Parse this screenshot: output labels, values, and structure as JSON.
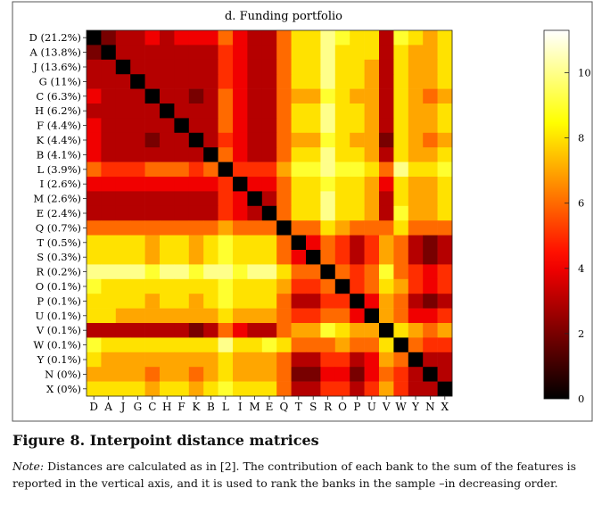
{
  "chart_data": {
    "type": "heatmap",
    "title": "d. Funding portfolio",
    "row_labels": [
      "D (21.2%)",
      "A (13.8%)",
      "J (13.6%)",
      "G (11%)",
      "C (6.3%)",
      "H (6.2%)",
      "F (4.4%)",
      "K (4.4%)",
      "B (4.1%)",
      "L (3.9%)",
      "I (2.6%)",
      "M (2.6%)",
      "E (2.4%)",
      "Q (0.7%)",
      "T (0.5%)",
      "S (0.3%)",
      "R (0.2%)",
      "O (0.1%)",
      "P (0.1%)",
      "U (0.1%)",
      "V (0.1%)",
      "W (0.1%)",
      "Y (0.1%)",
      "N (0%)",
      "X (0%)"
    ],
    "col_labels": [
      "D",
      "A",
      "J",
      "G",
      "C",
      "H",
      "F",
      "K",
      "B",
      "L",
      "I",
      "M",
      "E",
      "Q",
      "T",
      "S",
      "R",
      "O",
      "P",
      "U",
      "V",
      "W",
      "Y",
      "N",
      "X"
    ],
    "values": [
      [
        0,
        2,
        3,
        3,
        4,
        3,
        4,
        4,
        4,
        6,
        4,
        3,
        3,
        6,
        8,
        8,
        10,
        9,
        8,
        8,
        3,
        9,
        8,
        7,
        8
      ],
      [
        2,
        0,
        3,
        3,
        3,
        3,
        3,
        3,
        3,
        5,
        4,
        3,
        3,
        6,
        8,
        8,
        10,
        8,
        8,
        8,
        3,
        8,
        7,
        7,
        8
      ],
      [
        3,
        3,
        0,
        3,
        3,
        3,
        3,
        3,
        3,
        5,
        4,
        3,
        3,
        6,
        8,
        8,
        10,
        8,
        8,
        7,
        3,
        8,
        7,
        7,
        8
      ],
      [
        3,
        3,
        3,
        0,
        3,
        3,
        3,
        3,
        3,
        5,
        4,
        3,
        3,
        6,
        8,
        8,
        10,
        8,
        8,
        7,
        3,
        8,
        7,
        7,
        8
      ],
      [
        4,
        3,
        3,
        3,
        0,
        3,
        3,
        2,
        3,
        6,
        4,
        3,
        3,
        6,
        7,
        7,
        9,
        8,
        7,
        7,
        3,
        8,
        7,
        6,
        7
      ],
      [
        3,
        3,
        3,
        3,
        3,
        0,
        3,
        3,
        3,
        6,
        4,
        3,
        3,
        6,
        8,
        8,
        10,
        8,
        8,
        7,
        3,
        8,
        7,
        7,
        8
      ],
      [
        4,
        3,
        3,
        3,
        3,
        3,
        0,
        3,
        3,
        6,
        4,
        3,
        3,
        6,
        8,
        8,
        10,
        8,
        8,
        7,
        3,
        8,
        7,
        7,
        8
      ],
      [
        4,
        3,
        3,
        3,
        2,
        3,
        3,
        0,
        3,
        5,
        4,
        3,
        3,
        6,
        7,
        7,
        9,
        8,
        7,
        7,
        2,
        8,
        7,
        6,
        7
      ],
      [
        4,
        3,
        3,
        3,
        3,
        3,
        3,
        3,
        0,
        6,
        4,
        3,
        3,
        6,
        8,
        8,
        10,
        8,
        8,
        7,
        3,
        8,
        7,
        7,
        8
      ],
      [
        6,
        5,
        5,
        5,
        6,
        6,
        6,
        5,
        6,
        0,
        5,
        5,
        5,
        7,
        9,
        9,
        10,
        9,
        9,
        8,
        6,
        10,
        8,
        8,
        9
      ],
      [
        4,
        4,
        4,
        4,
        4,
        4,
        4,
        4,
        4,
        5,
        0,
        4,
        4,
        6,
        8,
        8,
        9,
        8,
        8,
        7,
        4,
        8,
        7,
        7,
        8
      ],
      [
        3,
        3,
        3,
        3,
        3,
        3,
        3,
        3,
        3,
        5,
        4,
        0,
        3,
        6,
        8,
        8,
        10,
        8,
        8,
        7,
        3,
        8,
        7,
        7,
        8
      ],
      [
        3,
        3,
        3,
        3,
        3,
        3,
        3,
        3,
        3,
        5,
        4,
        3,
        0,
        6,
        8,
        8,
        10,
        8,
        8,
        7,
        3,
        9,
        7,
        7,
        8
      ],
      [
        6,
        6,
        6,
        6,
        6,
        6,
        6,
        6,
        6,
        7,
        6,
        6,
        6,
        0,
        6,
        6,
        8,
        7,
        6,
        6,
        6,
        8,
        6,
        6,
        6
      ],
      [
        8,
        8,
        8,
        8,
        7,
        8,
        8,
        7,
        8,
        9,
        8,
        8,
        8,
        6,
        0,
        4,
        6,
        5,
        3,
        5,
        7,
        6,
        3,
        2,
        3
      ],
      [
        8,
        8,
        8,
        8,
        7,
        8,
        8,
        7,
        8,
        9,
        8,
        8,
        8,
        6,
        4,
        0,
        6,
        5,
        3,
        5,
        7,
        6,
        3,
        2,
        3
      ],
      [
        10,
        10,
        10,
        10,
        9,
        10,
        10,
        9,
        10,
        10,
        9,
        10,
        10,
        8,
        6,
        6,
        0,
        6,
        5,
        6,
        9,
        6,
        5,
        4,
        5
      ],
      [
        9,
        8,
        8,
        8,
        8,
        8,
        8,
        8,
        8,
        9,
        8,
        8,
        8,
        7,
        5,
        5,
        6,
        0,
        5,
        6,
        8,
        7,
        5,
        4,
        5
      ],
      [
        8,
        8,
        8,
        8,
        7,
        8,
        8,
        7,
        8,
        9,
        8,
        8,
        8,
        6,
        3,
        3,
        5,
        5,
        0,
        4,
        7,
        6,
        3,
        2,
        3
      ],
      [
        8,
        8,
        7,
        7,
        7,
        7,
        7,
        7,
        7,
        8,
        7,
        7,
        7,
        6,
        5,
        5,
        6,
        6,
        4,
        0,
        7,
        6,
        4,
        4,
        5
      ],
      [
        3,
        3,
        3,
        3,
        3,
        3,
        3,
        2,
        3,
        6,
        4,
        3,
        3,
        6,
        7,
        7,
        9,
        8,
        7,
        7,
        0,
        8,
        7,
        6,
        7
      ],
      [
        9,
        8,
        8,
        8,
        8,
        8,
        8,
        8,
        8,
        10,
        8,
        8,
        9,
        8,
        6,
        6,
        6,
        7,
        6,
        6,
        8,
        0,
        6,
        5,
        5
      ],
      [
        8,
        7,
        7,
        7,
        7,
        7,
        7,
        7,
        7,
        8,
        7,
        7,
        7,
        6,
        3,
        3,
        5,
        5,
        3,
        4,
        7,
        6,
        0,
        3,
        3
      ],
      [
        7,
        7,
        7,
        7,
        6,
        7,
        7,
        6,
        7,
        8,
        7,
        7,
        7,
        6,
        2,
        2,
        4,
        4,
        2,
        4,
        6,
        5,
        3,
        0,
        3
      ],
      [
        8,
        8,
        8,
        8,
        7,
        8,
        8,
        7,
        8,
        9,
        8,
        8,
        8,
        6,
        3,
        3,
        5,
        5,
        3,
        5,
        7,
        5,
        3,
        3,
        0
      ]
    ],
    "colorbar": {
      "ticks": [
        0,
        2,
        4,
        6,
        8,
        10
      ],
      "min": 0,
      "max": 11.3
    }
  },
  "caption": {
    "figure_title": "Figure 8. Interpoint distance matrices",
    "note_label": "Note:",
    "note_text": " Distances are calculated as in [2]. The contribution of each bank to the sum of the features is reported in the vertical axis, and it is used to rank the banks in the sample –in decreasing order."
  }
}
